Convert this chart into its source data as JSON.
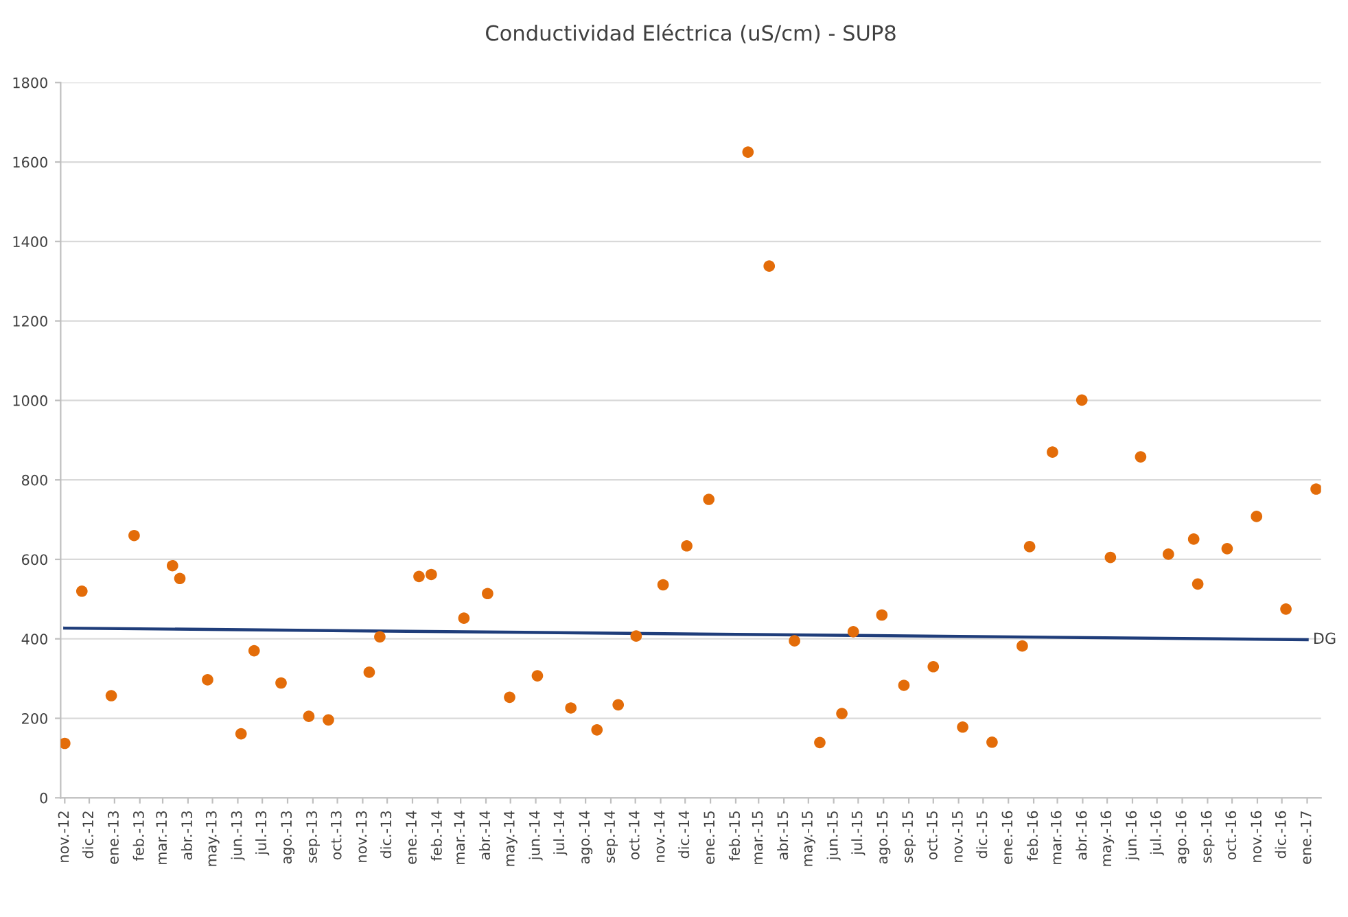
{
  "chart_data": {
    "type": "scatter",
    "title": "Conductividad Eléctrica (uS/cm) - SUP8",
    "xlim": [
      "2012-10-27",
      "2017-01-18"
    ],
    "xticks": [
      {
        "value": "2012-11-01",
        "label": "nov.-12"
      },
      {
        "value": "2012-12-01",
        "label": "dic.-12"
      },
      {
        "value": "2013-01-01",
        "label": "ene.-13"
      },
      {
        "value": "2013-02-01",
        "label": "feb.-13"
      },
      {
        "value": "2013-03-01",
        "label": "mar.-13"
      },
      {
        "value": "2013-04-01",
        "label": "abr.-13"
      },
      {
        "value": "2013-05-01",
        "label": "may.-13"
      },
      {
        "value": "2013-06-01",
        "label": "jun.-13"
      },
      {
        "value": "2013-07-01",
        "label": "jul.-13"
      },
      {
        "value": "2013-08-01",
        "label": "ago.-13"
      },
      {
        "value": "2013-09-01",
        "label": "sep.-13"
      },
      {
        "value": "2013-10-01",
        "label": "oct.-13"
      },
      {
        "value": "2013-11-01",
        "label": "nov.-13"
      },
      {
        "value": "2013-12-01",
        "label": "dic.-13"
      },
      {
        "value": "2014-01-01",
        "label": "ene.-14"
      },
      {
        "value": "2014-02-01",
        "label": "feb.-14"
      },
      {
        "value": "2014-03-01",
        "label": "mar.-14"
      },
      {
        "value": "2014-04-01",
        "label": "abr.-14"
      },
      {
        "value": "2014-05-01",
        "label": "may.-14"
      },
      {
        "value": "2014-06-01",
        "label": "jun.-14"
      },
      {
        "value": "2014-07-01",
        "label": "jul.-14"
      },
      {
        "value": "2014-08-01",
        "label": "ago.-14"
      },
      {
        "value": "2014-09-01",
        "label": "sep.-14"
      },
      {
        "value": "2014-10-01",
        "label": "oct.-14"
      },
      {
        "value": "2014-11-01",
        "label": "nov.-14"
      },
      {
        "value": "2014-12-01",
        "label": "dic.-14"
      },
      {
        "value": "2015-01-01",
        "label": "ene.-15"
      },
      {
        "value": "2015-02-01",
        "label": "feb.-15"
      },
      {
        "value": "2015-03-01",
        "label": "mar.-15"
      },
      {
        "value": "2015-04-01",
        "label": "abr.-15"
      },
      {
        "value": "2015-05-01",
        "label": "may.-15"
      },
      {
        "value": "2015-06-01",
        "label": "jun.-15"
      },
      {
        "value": "2015-07-01",
        "label": "jul.-15"
      },
      {
        "value": "2015-08-01",
        "label": "ago.-15"
      },
      {
        "value": "2015-09-01",
        "label": "sep.-15"
      },
      {
        "value": "2015-10-01",
        "label": "oct.-15"
      },
      {
        "value": "2015-11-01",
        "label": "nov.-15"
      },
      {
        "value": "2015-12-01",
        "label": "dic.-15"
      },
      {
        "value": "2016-01-01",
        "label": "ene.-16"
      },
      {
        "value": "2016-02-01",
        "label": "feb.-16"
      },
      {
        "value": "2016-03-01",
        "label": "mar.-16"
      },
      {
        "value": "2016-04-01",
        "label": "abr.-16"
      },
      {
        "value": "2016-05-01",
        "label": "may.-16"
      },
      {
        "value": "2016-06-01",
        "label": "jun.-16"
      },
      {
        "value": "2016-07-01",
        "label": "jul.-16"
      },
      {
        "value": "2016-08-01",
        "label": "ago.-16"
      },
      {
        "value": "2016-09-01",
        "label": "sep.-16"
      },
      {
        "value": "2016-10-01",
        "label": "oct.-16"
      },
      {
        "value": "2016-11-01",
        "label": "nov.-16"
      },
      {
        "value": "2016-12-01",
        "label": "dic.-16"
      },
      {
        "value": "2017-01-01",
        "label": "ene.-17"
      }
    ],
    "ylim": [
      0,
      1800
    ],
    "yticks": [
      0,
      200,
      400,
      600,
      800,
      1000,
      1200,
      1400,
      1600,
      1800
    ],
    "grid": "y",
    "legend": false,
    "marker": "circle",
    "series": [
      {
        "color": "#e36c09",
        "x": [
          "2012-11-01",
          "2012-11-22",
          "2012-12-28",
          "2013-01-25",
          "2013-03-13",
          "2013-03-22",
          "2013-04-25",
          "2013-06-05",
          "2013-06-21",
          "2013-07-24",
          "2013-08-27",
          "2013-09-20",
          "2013-11-09",
          "2013-11-22",
          "2014-01-09",
          "2014-01-24",
          "2014-03-05",
          "2014-04-03",
          "2014-04-30",
          "2014-06-03",
          "2014-07-14",
          "2014-08-15",
          "2014-09-10",
          "2014-10-02",
          "2014-11-04",
          "2014-12-03",
          "2014-12-30",
          "2015-02-16",
          "2015-03-14",
          "2015-04-14",
          "2015-05-15",
          "2015-06-11",
          "2015-06-25",
          "2015-07-30",
          "2015-08-26",
          "2015-10-01",
          "2015-11-06",
          "2015-12-12",
          "2016-01-18",
          "2016-01-27",
          "2016-02-24",
          "2016-03-31",
          "2016-05-05",
          "2016-06-11",
          "2016-07-15",
          "2016-08-15",
          "2016-08-20",
          "2016-09-25",
          "2016-10-31",
          "2016-12-06",
          "2017-01-12"
        ],
        "values": [
          137,
          520,
          257,
          660,
          584,
          552,
          297,
          161,
          370,
          289,
          205,
          196,
          316,
          405,
          557,
          562,
          452,
          514,
          253,
          307,
          226,
          171,
          234,
          407,
          536,
          634,
          751,
          1625,
          1338,
          395,
          139,
          212,
          418,
          460,
          283,
          330,
          178,
          140,
          382,
          632,
          870,
          1001,
          605,
          858,
          613,
          651,
          538,
          627,
          708,
          475,
          777
        ]
      },
      {
        "type": "line",
        "name": "DG",
        "color": "#1f3d7a",
        "marker": "none",
        "x": [
          "2012-11-01",
          "2017-01-01"
        ],
        "values": [
          427,
          398
        ]
      }
    ]
  }
}
